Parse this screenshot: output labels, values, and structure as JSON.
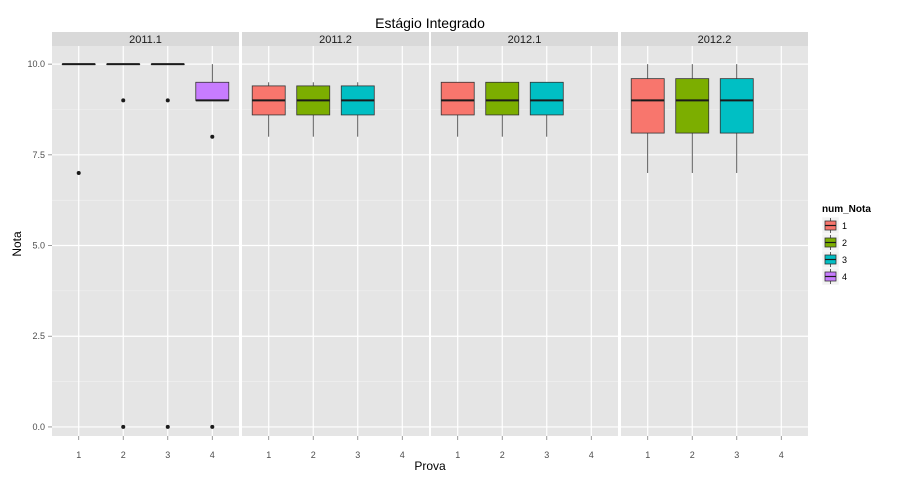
{
  "chart_data": {
    "type": "boxplot",
    "title": "Estágio Integrado",
    "xlabel": "Prova",
    "ylabel": "Nota",
    "x_categories": [
      "1",
      "2",
      "3",
      "4"
    ],
    "ylim": [
      -0.25,
      10.5
    ],
    "y_ticks": [
      0,
      2.5,
      5,
      7.5,
      10
    ],
    "y_tick_labels": [
      "0.0",
      "2.5",
      "5.0",
      "7.5",
      "10.0"
    ],
    "grid": true,
    "legend": {
      "title": "num_Nota",
      "position": "right",
      "entries": [
        {
          "label": "1",
          "color": "#F8766D"
        },
        {
          "label": "2",
          "color": "#7CAE00"
        },
        {
          "label": "3",
          "color": "#00BFC4"
        },
        {
          "label": "4",
          "color": "#C77CFF"
        }
      ]
    },
    "facets": [
      {
        "label": "2011.1",
        "boxes": [
          {
            "x": "1",
            "series": "1",
            "min": 10,
            "q1": 10,
            "median": 10,
            "q3": 10,
            "max": 10,
            "outliers": [
              7
            ]
          },
          {
            "x": "2",
            "series": "2",
            "min": 10,
            "q1": 10,
            "median": 10,
            "q3": 10,
            "max": 10,
            "outliers": [
              9,
              0
            ]
          },
          {
            "x": "3",
            "series": "3",
            "min": 10,
            "q1": 10,
            "median": 10,
            "q3": 10,
            "max": 10,
            "outliers": [
              9,
              0
            ]
          },
          {
            "x": "4",
            "series": "4",
            "min": 9,
            "q1": 9,
            "median": 9,
            "q3": 9.5,
            "max": 10,
            "outliers": [
              8,
              0
            ]
          }
        ]
      },
      {
        "label": "2011.2",
        "boxes": [
          {
            "x": "1",
            "series": "1",
            "min": 8,
            "q1": 8.6,
            "median": 9,
            "q3": 9.4,
            "max": 9.5,
            "outliers": []
          },
          {
            "x": "2",
            "series": "2",
            "min": 8,
            "q1": 8.6,
            "median": 9,
            "q3": 9.4,
            "max": 9.5,
            "outliers": []
          },
          {
            "x": "3",
            "series": "3",
            "min": 8,
            "q1": 8.6,
            "median": 9,
            "q3": 9.4,
            "max": 9.5,
            "outliers": []
          }
        ]
      },
      {
        "label": "2012.1",
        "boxes": [
          {
            "x": "1",
            "series": "1",
            "min": 8,
            "q1": 8.6,
            "median": 9,
            "q3": 9.5,
            "max": 9.5,
            "outliers": []
          },
          {
            "x": "2",
            "series": "2",
            "min": 8,
            "q1": 8.6,
            "median": 9,
            "q3": 9.5,
            "max": 9.5,
            "outliers": []
          },
          {
            "x": "3",
            "series": "3",
            "min": 8,
            "q1": 8.6,
            "median": 9,
            "q3": 9.5,
            "max": 9.5,
            "outliers": []
          }
        ]
      },
      {
        "label": "2012.2",
        "boxes": [
          {
            "x": "1",
            "series": "1",
            "min": 7,
            "q1": 8.1,
            "median": 9,
            "q3": 9.6,
            "max": 10,
            "outliers": []
          },
          {
            "x": "2",
            "series": "2",
            "min": 7,
            "q1": 8.1,
            "median": 9,
            "q3": 9.6,
            "max": 10,
            "outliers": []
          },
          {
            "x": "3",
            "series": "3",
            "min": 7,
            "q1": 8.1,
            "median": 9,
            "q3": 9.6,
            "max": 10,
            "outliers": []
          }
        ]
      }
    ]
  }
}
